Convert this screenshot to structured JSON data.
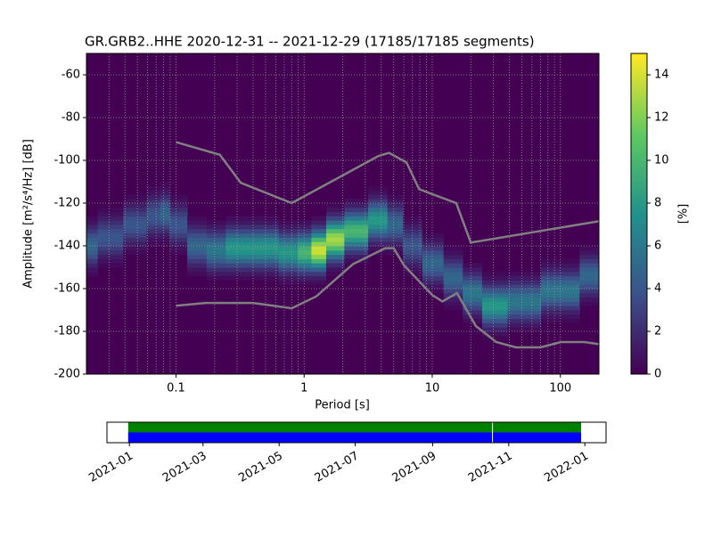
{
  "chart_data": {
    "type": "ppsd",
    "title": "GR.GRB2..HHE   2020-12-31 -- 2021-12-29  (17185/17185 segments)",
    "xlabel": "Period [s]",
    "ylabel": "Amplitude [m²/s⁴/Hz] [dB]",
    "xscale": "log",
    "xlim": [
      0.02,
      200
    ],
    "xticks": [
      0.1,
      1,
      10,
      100
    ],
    "ylim": [
      -200,
      -50
    ],
    "yticks": [
      -200,
      -180,
      -160,
      -140,
      -120,
      -100,
      -80,
      -60
    ],
    "grid": true,
    "colormap": "viridis",
    "colorbar": {
      "label": "[%]",
      "lim": [
        0,
        15
      ],
      "ticks": [
        0,
        2,
        4,
        6,
        8,
        10,
        12,
        14
      ]
    },
    "density": {
      "x": [
        0.02,
        0.03,
        0.05,
        0.07,
        0.08,
        0.1,
        0.15,
        0.2,
        0.3,
        0.5,
        0.8,
        1.0,
        1.3,
        1.7,
        2.5,
        4,
        5,
        7,
        10,
        15,
        20,
        30,
        50,
        100,
        200
      ],
      "mode": [
        -140,
        -136,
        -130,
        -126,
        -125,
        -130,
        -140,
        -142,
        -141,
        -141,
        -143,
        -143,
        -142,
        -137,
        -133,
        -128,
        -130,
        -140,
        -148,
        -155,
        -162,
        -168,
        -166,
        -161,
        -154
      ],
      "peak": [
        5,
        4,
        4,
        4,
        5,
        4,
        5,
        6,
        8,
        8,
        8,
        10,
        14,
        13,
        10,
        8,
        5,
        4,
        5,
        5,
        6,
        8,
        6,
        6,
        5
      ],
      "spread": 6
    },
    "noise_models": [
      {
        "color": "#808080",
        "x": [
          0.1,
          0.22,
          0.32,
          0.8,
          3.8,
          4.6,
          6.3,
          7.9,
          15.4,
          20,
          200
        ],
        "values": [
          -91.5,
          -97.4,
          -110.5,
          -120,
          -98,
          -96.5,
          -101,
          -113.5,
          -120,
          -138.5,
          -128.5
        ]
      },
      {
        "color": "#808080",
        "x": [
          0.1,
          0.17,
          0.4,
          0.8,
          1.24,
          2.4,
          4.3,
          5,
          6,
          10,
          12,
          15.6,
          21.9,
          31.6,
          45,
          70,
          101,
          154,
          200
        ],
        "values": [
          -168,
          -166.7,
          -166.7,
          -169.2,
          -163.7,
          -148.6,
          -141.1,
          -141.1,
          -149,
          -163,
          -166,
          -162.1,
          -177.5,
          -185,
          -187.5,
          -187.5,
          -185,
          -185,
          -186
        ]
      }
    ],
    "timeline": {
      "xlim": [
        "2020-12-14",
        "2022-01-18"
      ],
      "xticks": [
        "2021-01",
        "2021-03",
        "2021-05",
        "2021-07",
        "2021-09",
        "2021-11",
        "2022-01"
      ],
      "coverage": [
        [
          "2020-12-31",
          "2021-12-29"
        ]
      ],
      "gaps": [
        "2021-10-19"
      ],
      "colors": [
        "#008000",
        "#0000ff"
      ]
    }
  }
}
